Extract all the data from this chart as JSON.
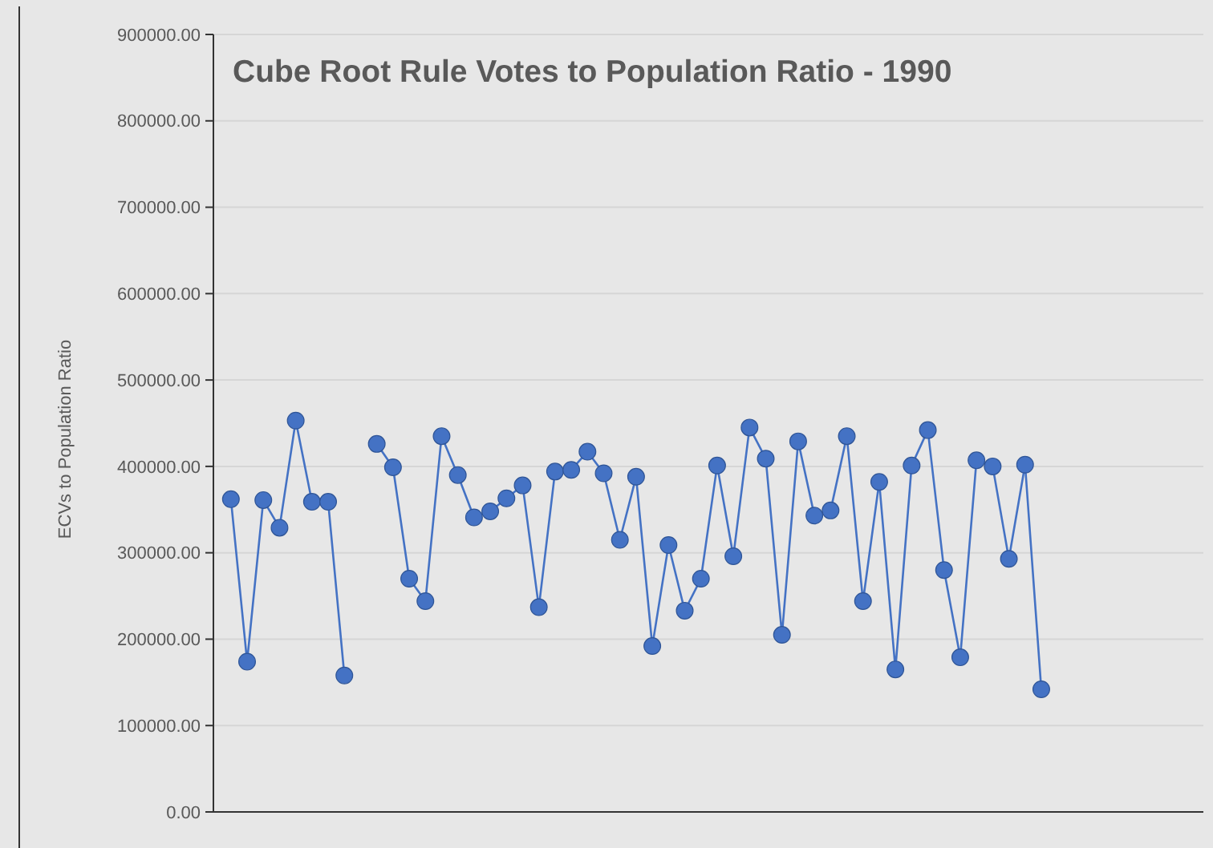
{
  "chart_data": {
    "type": "line",
    "title": "Cube Root Rule Votes to Population Ratio - 1990",
    "ylabel": "ECVs to Population Ratio",
    "categories": [
      null,
      null,
      null,
      null,
      null,
      null,
      null,
      null,
      null,
      null,
      null,
      null,
      null,
      null,
      null,
      null,
      null,
      null,
      null,
      null,
      null,
      null,
      null,
      null,
      null,
      null,
      null,
      null,
      null,
      null,
      null,
      null,
      null,
      null,
      null,
      null,
      null,
      null,
      null,
      null,
      null,
      null,
      null,
      null,
      null,
      null,
      null,
      null,
      null,
      null,
      null
    ],
    "series": [
      {
        "color": "#4472c4",
        "values": [
          362000,
          174000,
          361000,
          329000,
          453000,
          359000,
          359000,
          158000,
          null,
          null,
          null,
          null,
          null,
          null,
          null,
          null,
          null,
          null,
          null,
          null,
          null,
          null,
          null,
          null,
          null,
          null,
          null,
          null,
          null,
          null,
          null,
          null,
          null,
          null,
          null,
          null,
          null,
          null,
          null,
          null,
          null,
          null,
          null,
          null,
          null,
          null,
          null,
          null,
          null,
          null,
          null
        ]
      },
      {
        "color": "#4472c4",
        "values": [
          null,
          null,
          null,
          null,
          null,
          null,
          null,
          null,
          null,
          426000,
          399000,
          270000,
          244000,
          435000,
          390000,
          341000,
          348000,
          363000,
          378000,
          237000,
          394000,
          396000,
          417000,
          392000,
          315000,
          388000,
          192000,
          309000,
          233000,
          270000,
          401000,
          296000,
          445000,
          409000,
          205000,
          429000,
          343000,
          349000,
          435000,
          244000,
          382000,
          165000,
          401000,
          442000,
          280000,
          179000,
          407000,
          400000,
          293000,
          402000,
          142000
        ]
      }
    ],
    "ylim": [
      0,
      900000
    ],
    "yticks": [
      {
        "value": 0,
        "label": "0.00"
      },
      {
        "value": 100000,
        "label": "100000.00"
      },
      {
        "value": 200000,
        "label": "200000.00"
      },
      {
        "value": 300000,
        "label": "300000.00"
      },
      {
        "value": 400000,
        "label": "400000.00"
      },
      {
        "value": 500000,
        "label": "500000.00"
      },
      {
        "value": 600000,
        "label": "600000.00"
      },
      {
        "value": 700000,
        "label": "700000.00"
      },
      {
        "value": 800000,
        "label": "800000.00"
      },
      {
        "value": 900000,
        "label": "900000.00"
      }
    ],
    "grid": "y",
    "marker": "circle",
    "line_style": "solid"
  }
}
